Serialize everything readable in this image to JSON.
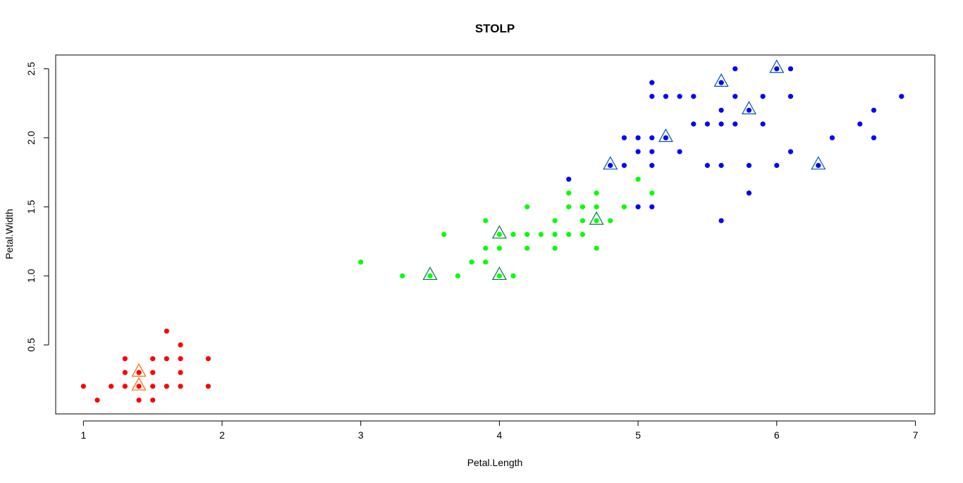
{
  "chart_data": {
    "type": "scatter",
    "title": "STOLP",
    "xlabel": "Petal.Length",
    "ylabel": "Petal.Width",
    "xlim": [
      0.8,
      7.14
    ],
    "ylim": [
      0,
      2.6
    ],
    "xticks": [
      "1",
      "2",
      "3",
      "4",
      "5",
      "6",
      "7"
    ],
    "yticks": [
      "0.5",
      "1.0",
      "1.5",
      "2.0",
      "2.5"
    ],
    "grid": false,
    "legend": "none",
    "series": [
      {
        "color": "#ff0000",
        "points": [
          [
            1.0,
            0.2
          ],
          [
            1.1,
            0.1
          ],
          [
            1.2,
            0.2
          ],
          [
            1.3,
            0.2
          ],
          [
            1.3,
            0.3
          ],
          [
            1.3,
            0.4
          ],
          [
            1.4,
            0.1
          ],
          [
            1.4,
            0.2
          ],
          [
            1.4,
            0.3
          ],
          [
            1.5,
            0.1
          ],
          [
            1.5,
            0.2
          ],
          [
            1.5,
            0.3
          ],
          [
            1.5,
            0.4
          ],
          [
            1.6,
            0.2
          ],
          [
            1.6,
            0.4
          ],
          [
            1.6,
            0.6
          ],
          [
            1.7,
            0.2
          ],
          [
            1.7,
            0.3
          ],
          [
            1.7,
            0.4
          ],
          [
            1.7,
            0.5
          ],
          [
            1.9,
            0.2
          ],
          [
            1.9,
            0.4
          ]
        ]
      },
      {
        "color": "#00ff00",
        "points": [
          [
            3.0,
            1.1
          ],
          [
            3.3,
            1.0
          ],
          [
            3.5,
            1.0
          ],
          [
            3.6,
            1.3
          ],
          [
            3.7,
            1.0
          ],
          [
            3.8,
            1.1
          ],
          [
            3.9,
            1.1
          ],
          [
            3.9,
            1.2
          ],
          [
            3.9,
            1.4
          ],
          [
            4.0,
            1.0
          ],
          [
            4.0,
            1.2
          ],
          [
            4.0,
            1.3
          ],
          [
            4.1,
            1.0
          ],
          [
            4.1,
            1.3
          ],
          [
            4.2,
            1.2
          ],
          [
            4.2,
            1.3
          ],
          [
            4.2,
            1.5
          ],
          [
            4.3,
            1.3
          ],
          [
            4.4,
            1.2
          ],
          [
            4.4,
            1.3
          ],
          [
            4.4,
            1.4
          ],
          [
            4.5,
            1.3
          ],
          [
            4.5,
            1.5
          ],
          [
            4.5,
            1.6
          ],
          [
            4.6,
            1.3
          ],
          [
            4.6,
            1.4
          ],
          [
            4.6,
            1.5
          ],
          [
            4.7,
            1.2
          ],
          [
            4.7,
            1.4
          ],
          [
            4.7,
            1.5
          ],
          [
            4.7,
            1.6
          ],
          [
            4.8,
            1.4
          ],
          [
            4.9,
            1.5
          ],
          [
            5.0,
            1.7
          ],
          [
            5.1,
            1.6
          ]
        ]
      },
      {
        "color": "#0000ff",
        "points": [
          [
            4.5,
            1.7
          ],
          [
            4.8,
            1.8
          ],
          [
            4.9,
            1.8
          ],
          [
            4.9,
            2.0
          ],
          [
            5.0,
            1.5
          ],
          [
            5.0,
            1.9
          ],
          [
            5.0,
            2.0
          ],
          [
            5.1,
            1.5
          ],
          [
            5.1,
            1.8
          ],
          [
            5.1,
            1.9
          ],
          [
            5.1,
            2.0
          ],
          [
            5.1,
            2.3
          ],
          [
            5.1,
            2.4
          ],
          [
            5.2,
            2.0
          ],
          [
            5.2,
            2.3
          ],
          [
            5.3,
            1.9
          ],
          [
            5.3,
            2.3
          ],
          [
            5.4,
            2.1
          ],
          [
            5.4,
            2.3
          ],
          [
            5.5,
            1.8
          ],
          [
            5.5,
            2.1
          ],
          [
            5.6,
            1.4
          ],
          [
            5.6,
            1.8
          ],
          [
            5.6,
            2.1
          ],
          [
            5.6,
            2.2
          ],
          [
            5.6,
            2.4
          ],
          [
            5.7,
            2.1
          ],
          [
            5.7,
            2.3
          ],
          [
            5.7,
            2.5
          ],
          [
            5.8,
            1.6
          ],
          [
            5.8,
            1.8
          ],
          [
            5.8,
            2.2
          ],
          [
            5.9,
            2.1
          ],
          [
            5.9,
            2.3
          ],
          [
            6.0,
            1.8
          ],
          [
            6.0,
            2.5
          ],
          [
            6.1,
            1.9
          ],
          [
            6.1,
            2.3
          ],
          [
            6.1,
            2.5
          ],
          [
            6.3,
            1.8
          ],
          [
            6.4,
            2.0
          ],
          [
            6.6,
            2.1
          ],
          [
            6.7,
            2.0
          ],
          [
            6.7,
            2.2
          ],
          [
            6.9,
            2.3
          ]
        ]
      }
    ],
    "highlighted": [
      {
        "color": "#ff6600",
        "points": [
          [
            1.4,
            0.2
          ],
          [
            1.4,
            0.3
          ]
        ]
      },
      {
        "color": "#007744",
        "points": [
          [
            3.5,
            1.0
          ],
          [
            4.0,
            1.0
          ],
          [
            4.0,
            1.3
          ],
          [
            4.7,
            1.4
          ]
        ]
      },
      {
        "color": "#0055aa",
        "points": [
          [
            4.8,
            1.8
          ],
          [
            5.2,
            2.0
          ],
          [
            5.6,
            2.4
          ],
          [
            5.8,
            2.2
          ],
          [
            6.0,
            2.5
          ],
          [
            6.3,
            1.8
          ]
        ]
      }
    ]
  }
}
